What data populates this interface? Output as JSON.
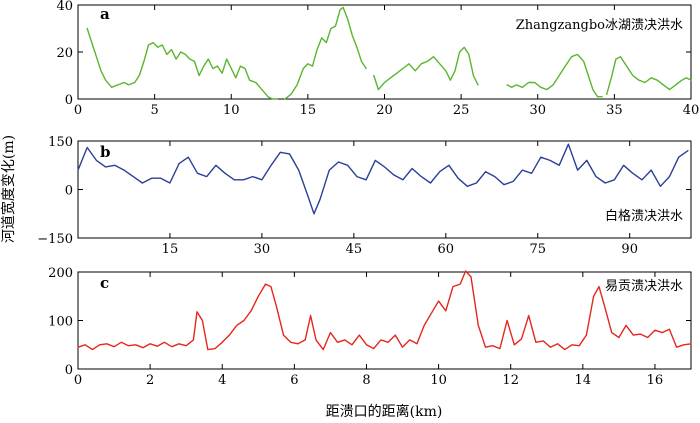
{
  "y_axis_label": "河道宽度变化(m)",
  "x_axis_label": "距溃口的距离(km)",
  "chart_data": [
    {
      "type": "line",
      "panel_letter": "a",
      "title": "Zhangzangbo冰湖溃决洪水",
      "color": "#5ab52f",
      "xlim": [
        0,
        40
      ],
      "ylim": [
        0,
        40
      ],
      "xticks": [
        0,
        5,
        10,
        15,
        20,
        25,
        30,
        35,
        40
      ],
      "yticks": [
        0,
        20,
        40
      ],
      "segments": [
        [
          [
            0.6,
            30
          ],
          [
            0.9,
            24
          ],
          [
            1.2,
            18
          ],
          [
            1.5,
            12
          ],
          [
            1.8,
            8
          ],
          [
            2.2,
            5
          ],
          [
            2.6,
            6
          ],
          [
            3.0,
            7
          ],
          [
            3.3,
            6
          ],
          [
            3.7,
            7
          ],
          [
            4.0,
            10
          ],
          [
            4.3,
            16
          ],
          [
            4.6,
            23
          ],
          [
            4.9,
            24
          ],
          [
            5.2,
            22
          ],
          [
            5.5,
            23
          ],
          [
            5.8,
            19
          ],
          [
            6.1,
            21
          ],
          [
            6.4,
            17
          ],
          [
            6.7,
            20
          ],
          [
            7.0,
            19
          ],
          [
            7.3,
            17
          ],
          [
            7.6,
            16
          ],
          [
            7.9,
            10
          ],
          [
            8.2,
            14
          ],
          [
            8.5,
            17
          ],
          [
            8.8,
            13
          ],
          [
            9.1,
            14
          ],
          [
            9.4,
            11
          ],
          [
            9.7,
            17
          ],
          [
            10.0,
            13
          ],
          [
            10.3,
            9
          ],
          [
            10.6,
            14
          ],
          [
            10.9,
            13
          ],
          [
            11.2,
            8
          ],
          [
            11.6,
            7
          ],
          [
            12.0,
            4
          ],
          [
            12.4,
            1
          ],
          [
            12.7,
            0
          ],
          [
            13.0,
            0
          ]
        ],
        [
          [
            13.5,
            0
          ],
          [
            13.9,
            2
          ],
          [
            14.3,
            6
          ],
          [
            14.7,
            13
          ],
          [
            15.0,
            15
          ],
          [
            15.3,
            14
          ],
          [
            15.6,
            21
          ],
          [
            15.9,
            26
          ],
          [
            16.2,
            24
          ],
          [
            16.5,
            30
          ],
          [
            16.8,
            31
          ],
          [
            17.1,
            38
          ],
          [
            17.3,
            39
          ],
          [
            17.6,
            34
          ],
          [
            17.9,
            27
          ],
          [
            18.2,
            22
          ],
          [
            18.5,
            16
          ],
          [
            18.8,
            13
          ]
        ],
        [
          [
            19.3,
            10
          ],
          [
            19.6,
            4
          ],
          [
            20.0,
            7
          ],
          [
            20.4,
            9
          ],
          [
            20.8,
            11
          ],
          [
            21.2,
            13
          ],
          [
            21.6,
            15
          ],
          [
            22.0,
            12
          ],
          [
            22.4,
            15
          ],
          [
            22.8,
            16
          ],
          [
            23.2,
            18
          ],
          [
            23.6,
            15
          ],
          [
            24.0,
            12
          ],
          [
            24.3,
            8
          ],
          [
            24.6,
            12
          ],
          [
            24.9,
            20
          ],
          [
            25.2,
            22
          ],
          [
            25.5,
            19
          ],
          [
            25.8,
            10
          ],
          [
            26.1,
            6
          ]
        ],
        [
          [
            28.0,
            6
          ],
          [
            28.3,
            5
          ],
          [
            28.6,
            6
          ],
          [
            29.0,
            5
          ],
          [
            29.4,
            7
          ],
          [
            29.8,
            7
          ],
          [
            30.2,
            5
          ],
          [
            30.6,
            4
          ],
          [
            31.0,
            6
          ],
          [
            31.4,
            10
          ],
          [
            31.8,
            14
          ],
          [
            32.2,
            18
          ],
          [
            32.6,
            19
          ],
          [
            33.0,
            16
          ],
          [
            33.3,
            10
          ],
          [
            33.6,
            4
          ],
          [
            33.9,
            1
          ],
          [
            34.2,
            1
          ]
        ],
        [
          [
            34.5,
            2
          ],
          [
            34.8,
            9
          ],
          [
            35.1,
            17
          ],
          [
            35.4,
            18
          ],
          [
            35.8,
            14
          ],
          [
            36.2,
            10
          ],
          [
            36.6,
            8
          ],
          [
            37.0,
            7
          ],
          [
            37.4,
            9
          ],
          [
            37.8,
            8
          ],
          [
            38.2,
            6
          ],
          [
            38.6,
            4
          ],
          [
            39.0,
            6
          ],
          [
            39.4,
            8
          ],
          [
            39.7,
            9
          ],
          [
            40.0,
            8
          ]
        ]
      ]
    },
    {
      "type": "line",
      "panel_letter": "b",
      "title": "白格溃决洪水",
      "color": "#2b3f96",
      "xlim": [
        0,
        100
      ],
      "ylim": [
        -150,
        150
      ],
      "xticks": [
        15,
        30,
        45,
        60,
        75,
        90
      ],
      "yticks": [
        -150,
        0,
        150
      ],
      "ytick_labels": [
        "−150",
        "0",
        "150"
      ],
      "segments": [
        [
          [
            0,
            60
          ],
          [
            1.5,
            130
          ],
          [
            3,
            90
          ],
          [
            4.5,
            70
          ],
          [
            6,
            75
          ],
          [
            7.5,
            60
          ],
          [
            9,
            40
          ],
          [
            10.5,
            20
          ],
          [
            12,
            35
          ],
          [
            13.5,
            35
          ],
          [
            15,
            20
          ],
          [
            16.5,
            80
          ],
          [
            18,
            100
          ],
          [
            19.5,
            50
          ],
          [
            21,
            40
          ],
          [
            22.5,
            75
          ],
          [
            24,
            50
          ],
          [
            25.5,
            30
          ],
          [
            27,
            30
          ],
          [
            28.5,
            40
          ],
          [
            30,
            30
          ],
          [
            31.5,
            75
          ],
          [
            33,
            115
          ],
          [
            34.5,
            110
          ],
          [
            36,
            60
          ],
          [
            37.5,
            -20
          ],
          [
            38.5,
            -75
          ],
          [
            39.5,
            -30
          ],
          [
            41,
            60
          ],
          [
            42.5,
            85
          ],
          [
            44,
            75
          ],
          [
            45.5,
            40
          ],
          [
            47,
            30
          ],
          [
            48.5,
            90
          ],
          [
            50,
            70
          ],
          [
            51.5,
            45
          ],
          [
            53,
            30
          ],
          [
            54.5,
            65
          ],
          [
            56,
            40
          ],
          [
            57.5,
            20
          ],
          [
            59,
            55
          ],
          [
            60.5,
            75
          ],
          [
            62,
            35
          ],
          [
            63.5,
            10
          ],
          [
            65,
            20
          ],
          [
            66.5,
            55
          ],
          [
            68,
            40
          ],
          [
            69.5,
            15
          ],
          [
            71,
            25
          ],
          [
            72.5,
            60
          ],
          [
            74,
            50
          ],
          [
            75.5,
            100
          ],
          [
            77,
            90
          ],
          [
            78.5,
            75
          ],
          [
            80,
            140
          ],
          [
            81.5,
            60
          ],
          [
            83,
            90
          ],
          [
            84.5,
            40
          ],
          [
            86,
            20
          ],
          [
            87.5,
            30
          ],
          [
            89,
            75
          ],
          [
            90.5,
            50
          ],
          [
            92,
            30
          ],
          [
            93.5,
            60
          ],
          [
            95,
            10
          ],
          [
            96.5,
            40
          ],
          [
            98,
            100
          ],
          [
            99.5,
            120
          ]
        ]
      ]
    },
    {
      "type": "line",
      "panel_letter": "c",
      "title": "易贡溃决洪水",
      "color": "#e5271e",
      "xlim": [
        0,
        17
      ],
      "ylim": [
        0,
        200
      ],
      "xticks": [
        0,
        2,
        4,
        6,
        8,
        10,
        12,
        14,
        16
      ],
      "yticks": [
        0,
        100,
        200
      ],
      "segments": [
        [
          [
            0,
            45
          ],
          [
            0.2,
            50
          ],
          [
            0.4,
            40
          ],
          [
            0.6,
            50
          ],
          [
            0.8,
            52
          ],
          [
            1.0,
            46
          ],
          [
            1.2,
            55
          ],
          [
            1.4,
            48
          ],
          [
            1.6,
            50
          ],
          [
            1.8,
            44
          ],
          [
            2.0,
            52
          ],
          [
            2.2,
            47
          ],
          [
            2.4,
            55
          ],
          [
            2.6,
            46
          ],
          [
            2.8,
            52
          ],
          [
            3.0,
            48
          ],
          [
            3.2,
            60
          ],
          [
            3.3,
            118
          ],
          [
            3.45,
            100
          ],
          [
            3.6,
            40
          ],
          [
            3.8,
            42
          ],
          [
            4.0,
            55
          ],
          [
            4.2,
            70
          ],
          [
            4.4,
            90
          ],
          [
            4.6,
            100
          ],
          [
            4.8,
            120
          ],
          [
            5.0,
            150
          ],
          [
            5.2,
            175
          ],
          [
            5.35,
            170
          ],
          [
            5.5,
            130
          ],
          [
            5.7,
            70
          ],
          [
            5.9,
            55
          ],
          [
            6.1,
            52
          ],
          [
            6.3,
            60
          ],
          [
            6.45,
            110
          ],
          [
            6.6,
            60
          ],
          [
            6.8,
            40
          ],
          [
            7.0,
            75
          ],
          [
            7.2,
            55
          ],
          [
            7.4,
            60
          ],
          [
            7.6,
            50
          ],
          [
            7.8,
            70
          ],
          [
            8.0,
            50
          ],
          [
            8.2,
            42
          ],
          [
            8.4,
            60
          ],
          [
            8.6,
            55
          ],
          [
            8.8,
            70
          ],
          [
            9.0,
            45
          ],
          [
            9.2,
            60
          ],
          [
            9.4,
            52
          ],
          [
            9.6,
            90
          ],
          [
            9.8,
            115
          ],
          [
            10.0,
            140
          ],
          [
            10.2,
            120
          ],
          [
            10.4,
            170
          ],
          [
            10.6,
            175
          ],
          [
            10.75,
            202
          ],
          [
            10.9,
            190
          ],
          [
            11.1,
            90
          ],
          [
            11.3,
            45
          ],
          [
            11.5,
            48
          ],
          [
            11.7,
            42
          ],
          [
            11.9,
            100
          ],
          [
            12.1,
            50
          ],
          [
            12.3,
            62
          ],
          [
            12.5,
            110
          ],
          [
            12.7,
            55
          ],
          [
            12.9,
            58
          ],
          [
            13.1,
            45
          ],
          [
            13.3,
            52
          ],
          [
            13.5,
            40
          ],
          [
            13.7,
            50
          ],
          [
            13.9,
            48
          ],
          [
            14.1,
            70
          ],
          [
            14.3,
            150
          ],
          [
            14.45,
            170
          ],
          [
            14.6,
            130
          ],
          [
            14.8,
            75
          ],
          [
            15.0,
            65
          ],
          [
            15.2,
            90
          ],
          [
            15.4,
            70
          ],
          [
            15.6,
            72
          ],
          [
            15.8,
            65
          ],
          [
            16.0,
            80
          ],
          [
            16.2,
            75
          ],
          [
            16.4,
            82
          ],
          [
            16.6,
            45
          ],
          [
            16.8,
            50
          ],
          [
            17.0,
            52
          ]
        ]
      ]
    }
  ]
}
